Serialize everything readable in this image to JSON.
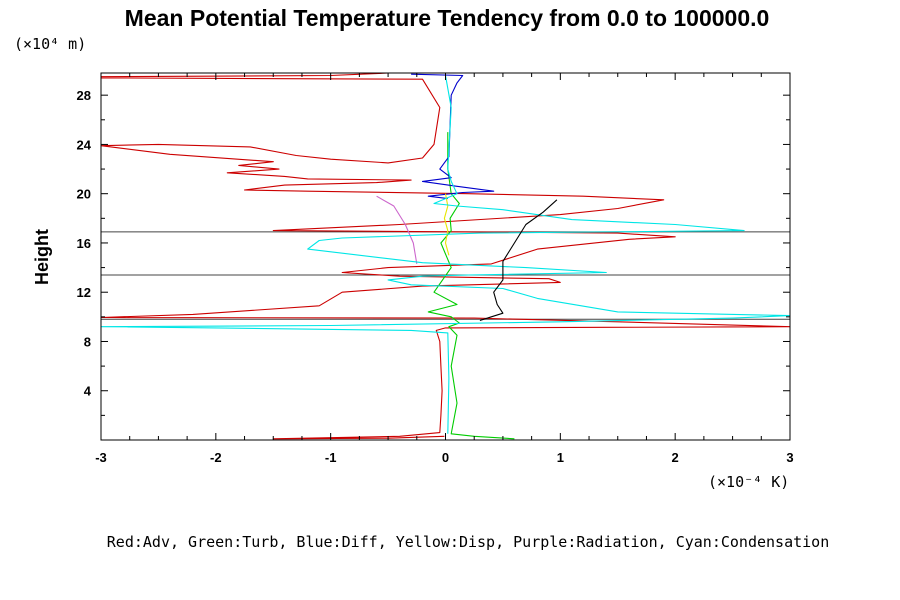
{
  "chart_data": {
    "type": "line",
    "title": "Mean Potential Temperature Tendency from 0.0 to 100000.0",
    "ylabel": "Height",
    "y_unit": "(×10⁴ m)",
    "x_unit": "(×10⁻⁴ K)",
    "xlim": [
      -3,
      3
    ],
    "ylim": [
      0,
      29.8
    ],
    "x_ticks": [
      -3,
      -2,
      -1,
      0,
      1,
      2,
      3
    ],
    "x_tick_labels": [
      "-3",
      "-2",
      "-1",
      "0",
      "1",
      "2",
      "3"
    ],
    "y_ticks": [
      4,
      8,
      12,
      16,
      20,
      24,
      28
    ],
    "y_tick_labels": [
      "4",
      "8",
      "12",
      "16",
      "20",
      "24",
      "28"
    ],
    "grid": false,
    "legend_text": "Red:Adv, Green:Turb, Blue:Diff, Yellow:Disp, Purple:Radiation, Cyan:Condensation",
    "series": [
      {
        "name": "Adv",
        "color": "#cc0000",
        "points": [
          [
            -0.01,
            0.3
          ],
          [
            -0.5,
            0.15
          ],
          [
            -1.5,
            0.1
          ],
          [
            -0.4,
            0.3
          ],
          [
            -0.05,
            0.6
          ],
          [
            -0.04,
            2
          ],
          [
            -0.03,
            4
          ],
          [
            -0.04,
            6
          ],
          [
            -0.05,
            8
          ],
          [
            -0.08,
            8.9
          ],
          [
            0,
            9.1
          ],
          [
            3,
            9.2
          ],
          [
            1.5,
            9.6
          ],
          [
            0.25,
            9.9
          ],
          [
            -3,
            9.95
          ],
          [
            -2.2,
            10.2
          ],
          [
            -1.1,
            10.9
          ],
          [
            -0.9,
            12.0
          ],
          [
            -0.2,
            12.5
          ],
          [
            1.0,
            12.8
          ],
          [
            0.9,
            13.1
          ],
          [
            -0.4,
            13.3
          ],
          [
            -0.9,
            13.6
          ],
          [
            -0.5,
            14.0
          ],
          [
            0.4,
            14.3
          ],
          [
            0.8,
            15.5
          ],
          [
            1.6,
            16.3
          ],
          [
            2.0,
            16.5
          ],
          [
            1.5,
            16.8
          ],
          [
            0.2,
            16.9
          ],
          [
            -1.5,
            17.0
          ],
          [
            -0.4,
            17.5
          ],
          [
            1.0,
            18.3
          ],
          [
            1.5,
            18.8
          ],
          [
            1.9,
            19.5
          ],
          [
            1.2,
            19.8
          ],
          [
            0.2,
            20.0
          ],
          [
            -1.2,
            20.2
          ],
          [
            -1.75,
            20.3
          ],
          [
            -1.4,
            20.7
          ],
          [
            -0.6,
            20.9
          ],
          [
            -0.3,
            21.1
          ],
          [
            -1.2,
            21.2
          ],
          [
            -1.4,
            21.4
          ],
          [
            -1.9,
            21.7
          ],
          [
            -1.45,
            22.0
          ],
          [
            -1.8,
            22.3
          ],
          [
            -1.5,
            22.6
          ],
          [
            -2.4,
            23.2
          ],
          [
            -3,
            23.9
          ],
          [
            -2.5,
            24.0
          ],
          [
            -1.7,
            23.8
          ],
          [
            -1.3,
            23.1
          ],
          [
            -1.0,
            22.8
          ],
          [
            -0.5,
            22.5
          ],
          [
            -0.2,
            22.9
          ],
          [
            -0.1,
            24
          ],
          [
            -0.05,
            27
          ],
          [
            -0.2,
            29.3
          ],
          [
            -3,
            29.4
          ],
          [
            -3,
            29.5
          ],
          [
            -1.0,
            29.6
          ],
          [
            -0.5,
            29.8
          ]
        ]
      },
      {
        "name": "Turb",
        "color": "#00cc00",
        "points": [
          [
            0.6,
            0.1
          ],
          [
            0.25,
            0.3
          ],
          [
            0.05,
            0.5
          ],
          [
            0.1,
            3
          ],
          [
            0.05,
            6
          ],
          [
            0.1,
            8.5
          ],
          [
            0.03,
            9.2
          ],
          [
            0.12,
            9.5
          ],
          [
            0.05,
            10
          ],
          [
            -0.15,
            10.4
          ],
          [
            0.1,
            11
          ],
          [
            -0.1,
            12
          ],
          [
            0.05,
            14
          ],
          [
            -0.04,
            16
          ],
          [
            0.05,
            17
          ],
          [
            0.04,
            18
          ],
          [
            0.12,
            19.2
          ],
          [
            0.05,
            20
          ],
          [
            0.02,
            22
          ],
          [
            0.02,
            25
          ]
        ]
      },
      {
        "name": "Diff",
        "color": "#0000cc",
        "points": [
          [
            0.02,
            19.6
          ],
          [
            -0.15,
            19.8
          ],
          [
            0.15,
            20.1
          ],
          [
            0.42,
            20.2
          ],
          [
            0.1,
            20.6
          ],
          [
            -0.2,
            21.0
          ],
          [
            0.05,
            21.3
          ],
          [
            -0.05,
            22
          ],
          [
            0.03,
            23
          ],
          [
            0.05,
            28
          ],
          [
            0.1,
            29.0
          ],
          [
            0.15,
            29.6
          ],
          [
            -0.3,
            29.7
          ]
        ]
      },
      {
        "name": "Disp",
        "color": "#e6e600",
        "points": [
          [
            0.03,
            15
          ],
          [
            0.0,
            16
          ],
          [
            0.02,
            17
          ],
          [
            -0.01,
            18
          ],
          [
            0.02,
            19
          ],
          [
            0.0,
            20
          ]
        ]
      },
      {
        "name": "Radiation",
        "color": "#cc66cc",
        "points": [
          [
            -0.6,
            19.8
          ],
          [
            -0.45,
            19.0
          ],
          [
            -0.35,
            17.5
          ],
          [
            -0.28,
            16.0
          ],
          [
            -0.25,
            14.3
          ]
        ]
      },
      {
        "name": "Condensation",
        "color": "#00e6e6",
        "points": [
          [
            0.02,
            0.5
          ],
          [
            0.03,
            5
          ],
          [
            0.02,
            8.7
          ],
          [
            -0.3,
            8.9
          ],
          [
            -2.0,
            9.1
          ],
          [
            -3,
            9.2
          ],
          [
            -1.0,
            9.3
          ],
          [
            1.0,
            9.6
          ],
          [
            2.5,
            9.9
          ],
          [
            3,
            10.1
          ],
          [
            1.5,
            10.4
          ],
          [
            0.8,
            11.5
          ],
          [
            0.5,
            12.3
          ],
          [
            -0.3,
            12.6
          ],
          [
            -0.5,
            13.0
          ],
          [
            -0.2,
            13.3
          ],
          [
            0.2,
            13.4
          ],
          [
            1.4,
            13.6
          ],
          [
            0.7,
            14.0
          ],
          [
            -0.2,
            14.4
          ],
          [
            -1.2,
            15.5
          ],
          [
            -1.1,
            16.2
          ],
          [
            -0.9,
            16.4
          ],
          [
            0.3,
            16.8
          ],
          [
            2.6,
            17.0
          ],
          [
            2.0,
            17.5
          ],
          [
            1.1,
            17.9
          ],
          [
            0.5,
            18.7
          ],
          [
            0.1,
            19.0
          ],
          [
            -0.1,
            19.2
          ],
          [
            0.1,
            20
          ],
          [
            0.05,
            21
          ],
          [
            0.02,
            22
          ],
          [
            0.05,
            27
          ],
          [
            0.0,
            29.6
          ]
        ]
      },
      {
        "name": "",
        "color": "#000000",
        "points": [
          [
            0.3,
            9.7
          ],
          [
            0.4,
            10.0
          ],
          [
            0.5,
            10.3
          ],
          [
            0.45,
            11.0
          ],
          [
            0.42,
            12.0
          ],
          [
            0.5,
            13.0
          ],
          [
            0.5,
            14.5
          ],
          [
            0.6,
            16.0
          ],
          [
            0.7,
            17.5
          ],
          [
            0.85,
            18.5
          ],
          [
            0.97,
            19.5
          ]
        ]
      }
    ],
    "horizontal_lines": [
      {
        "y": 9.8,
        "color": "#444444"
      },
      {
        "y": 13.4,
        "color": "#444444"
      },
      {
        "y": 16.9,
        "color": "#444444"
      }
    ]
  }
}
